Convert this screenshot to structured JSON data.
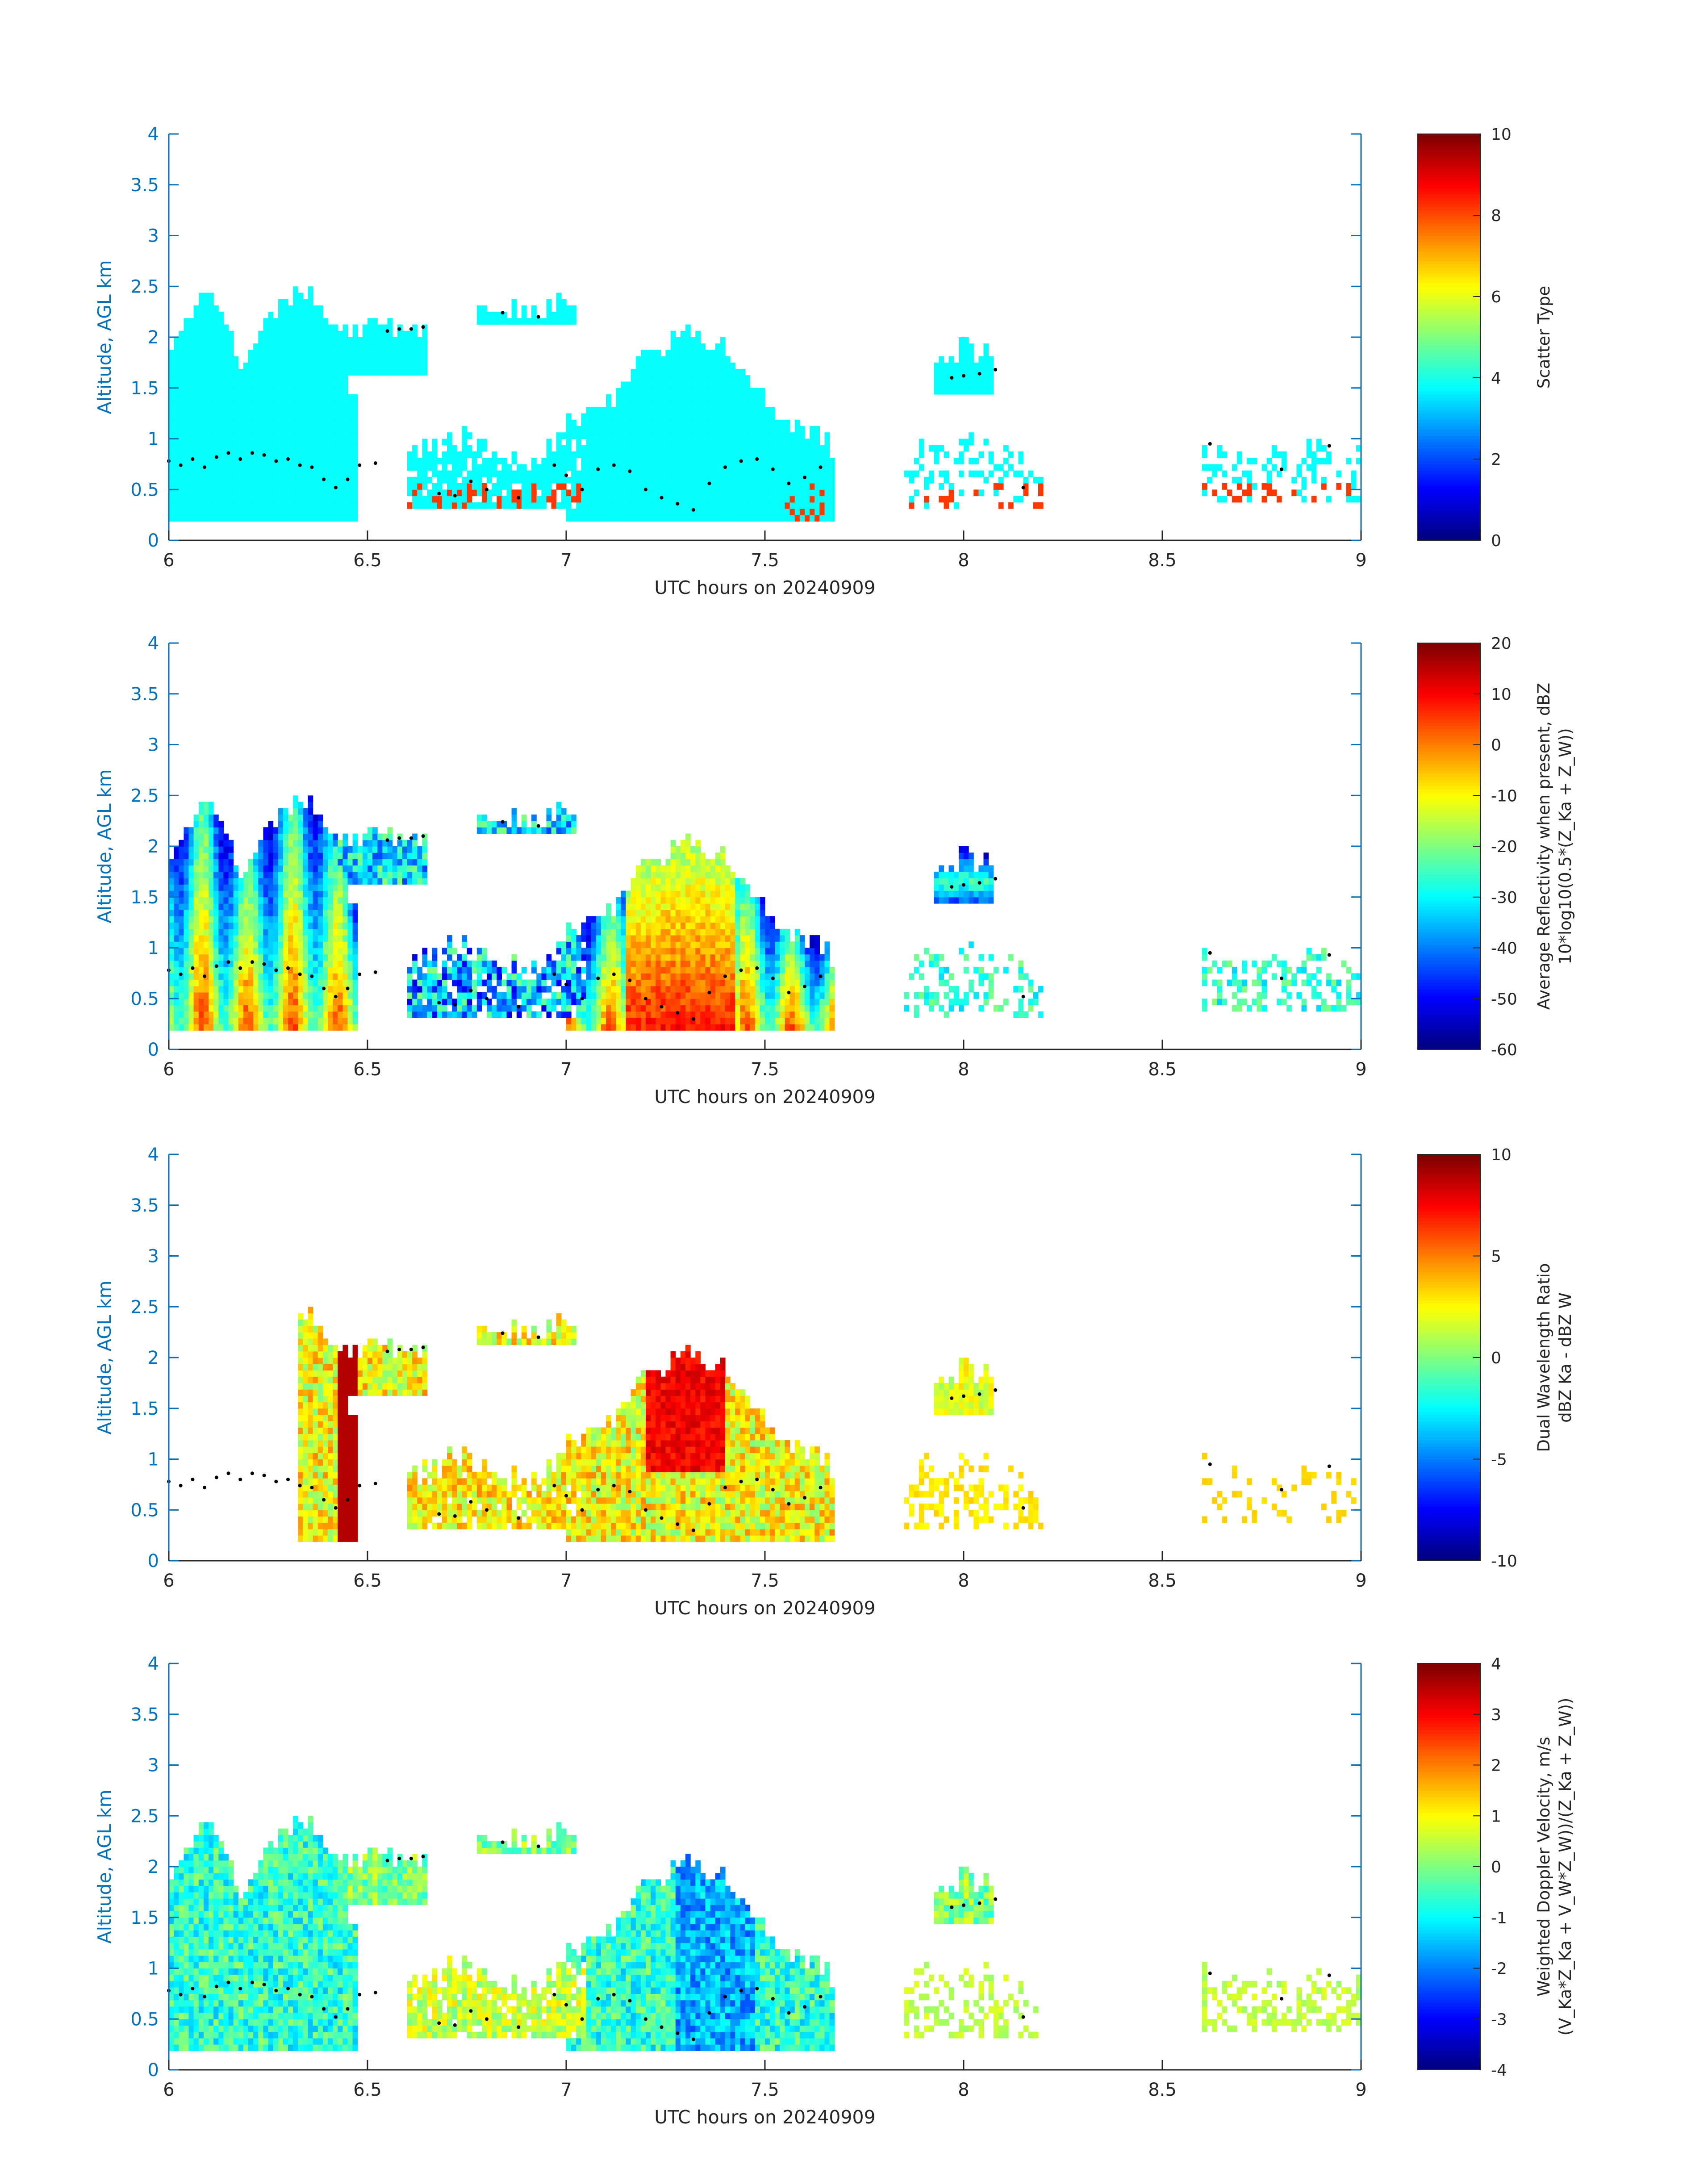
{
  "chart_data": [
    {
      "type": "heatmap",
      "panel": "scatter-type",
      "xlabel": "UTC hours on 20240909",
      "ylabel": "Altitude, AGL km",
      "xlim": [
        6,
        9
      ],
      "ylim": [
        0,
        4
      ],
      "xticks": [
        "6",
        "6.5",
        "7",
        "7.5",
        "8",
        "8.5",
        "9"
      ],
      "yticks": [
        "0",
        "0.5",
        "1",
        "1.5",
        "2",
        "2.5",
        "3",
        "3.5",
        "4"
      ],
      "colorbar": {
        "title_lines": [
          "Scatter Type"
        ],
        "clim": [
          0,
          10
        ],
        "ticks": [
          "0",
          "2",
          "4",
          "6",
          "8",
          "10"
        ]
      },
      "colormap": "jet",
      "annotations": "black dots mark cloud base / melting layer estimates"
    },
    {
      "type": "heatmap",
      "panel": "reflectivity",
      "xlabel": "UTC hours on 20240909",
      "ylabel": "Altitude, AGL km",
      "xlim": [
        6,
        9
      ],
      "ylim": [
        0,
        4
      ],
      "xticks": [
        "6",
        "6.5",
        "7",
        "7.5",
        "8",
        "8.5",
        "9"
      ],
      "yticks": [
        "0",
        "0.5",
        "1",
        "1.5",
        "2",
        "2.5",
        "3",
        "3.5",
        "4"
      ],
      "colorbar": {
        "title_lines": [
          "Average Reflectivity when present, dBZ",
          "10*log10(0.5*(Z_Ka + Z_W))"
        ],
        "clim": [
          -60,
          20
        ],
        "ticks": [
          "-60",
          "-50",
          "-40",
          "-30",
          "-20",
          "-10",
          "0",
          "10",
          "20"
        ]
      },
      "colormap": "jet"
    },
    {
      "type": "heatmap",
      "panel": "dwr",
      "xlabel": "UTC hours on 20240909",
      "ylabel": "Altitude, AGL km",
      "xlim": [
        6,
        9
      ],
      "ylim": [
        0,
        4
      ],
      "xticks": [
        "6",
        "6.5",
        "7",
        "7.5",
        "8",
        "8.5",
        "9"
      ],
      "yticks": [
        "0",
        "0.5",
        "1",
        "1.5",
        "2",
        "2.5",
        "3",
        "3.5",
        "4"
      ],
      "colorbar": {
        "title_lines": [
          "Dual Wavelength Ratio",
          "dBZ Ka - dBZ W"
        ],
        "clim": [
          -10,
          10
        ],
        "ticks": [
          "-10",
          "-5",
          "0",
          "5",
          "10"
        ]
      },
      "colormap": "jet"
    },
    {
      "type": "heatmap",
      "panel": "doppler",
      "xlabel": "UTC hours on 20240909",
      "ylabel": "Altitude, AGL km",
      "xlim": [
        6,
        9
      ],
      "ylim": [
        0,
        4
      ],
      "xticks": [
        "6",
        "6.5",
        "7",
        "7.5",
        "8",
        "8.5",
        "9"
      ],
      "yticks": [
        "0",
        "0.5",
        "1",
        "1.5",
        "2",
        "2.5",
        "3",
        "3.5",
        "4"
      ],
      "colorbar": {
        "title_lines": [
          "Weighted Doppler Velocity, m/s",
          "(V_Ka*Z_Ka + V_W*Z_W))/(Z_Ka + Z_W))"
        ],
        "clim": [
          -4,
          4
        ],
        "ticks": [
          "-4",
          "-3",
          "-2",
          "-1",
          "0",
          "1",
          "2",
          "3",
          "4"
        ]
      },
      "colormap": "jet"
    }
  ],
  "cloud_regions": [
    {
      "name": "early-cloud",
      "x": [
        6.0,
        6.48
      ],
      "base": 0.2,
      "top": [
        2.0,
        2.4,
        1.7,
        2.4,
        2.4,
        1.3
      ],
      "mode": "convective"
    },
    {
      "name": "anvil",
      "x": [
        6.35,
        6.65
      ],
      "base": 1.6,
      "top": [
        2.15,
        2.1,
        2.1
      ],
      "mode": "thin"
    },
    {
      "name": "low-cloud-a",
      "x": [
        6.6,
        7.05
      ],
      "base": 0.3,
      "top": [
        0.9,
        1.0,
        0.8,
        1.1
      ],
      "mode": "shallow"
    },
    {
      "name": "small-upper",
      "x": [
        6.78,
        7.02
      ],
      "base": 2.1,
      "top": [
        2.3,
        2.3
      ],
      "mode": "thin"
    },
    {
      "name": "main-cell",
      "x": [
        7.0,
        7.68
      ],
      "base": 0.2,
      "top": [
        1.2,
        1.3,
        1.8,
        2.0,
        1.9,
        1.5,
        1.1,
        0.9
      ],
      "mode": "convective"
    },
    {
      "name": "blob-8",
      "x": [
        7.92,
        8.08
      ],
      "base": 1.45,
      "top": [
        1.8,
        1.9,
        1.8
      ],
      "mode": "blob"
    },
    {
      "name": "scatter-8",
      "x": [
        7.85,
        8.2
      ],
      "base": 0.3,
      "top": [
        0.9,
        1.0,
        0.7
      ],
      "mode": "sparse"
    },
    {
      "name": "scatter-late",
      "x": [
        8.6,
        9.0
      ],
      "base": 0.4,
      "top": [
        1.0,
        0.9,
        0.9
      ],
      "mode": "sparse"
    }
  ],
  "base_dots": [
    [
      6.0,
      0.78
    ],
    [
      6.03,
      0.74
    ],
    [
      6.06,
      0.8
    ],
    [
      6.09,
      0.72
    ],
    [
      6.12,
      0.82
    ],
    [
      6.15,
      0.86
    ],
    [
      6.18,
      0.8
    ],
    [
      6.21,
      0.86
    ],
    [
      6.24,
      0.84
    ],
    [
      6.27,
      0.78
    ],
    [
      6.3,
      0.8
    ],
    [
      6.33,
      0.74
    ],
    [
      6.36,
      0.72
    ],
    [
      6.39,
      0.6
    ],
    [
      6.42,
      0.52
    ],
    [
      6.45,
      0.6
    ],
    [
      6.48,
      0.74
    ],
    [
      6.52,
      0.76
    ],
    [
      6.55,
      2.06
    ],
    [
      6.58,
      2.08
    ],
    [
      6.61,
      2.08
    ],
    [
      6.64,
      2.1
    ],
    [
      6.68,
      0.46
    ],
    [
      6.72,
      0.44
    ],
    [
      6.76,
      0.58
    ],
    [
      6.8,
      0.5
    ],
    [
      6.84,
      2.24
    ],
    [
      6.88,
      0.42
    ],
    [
      6.93,
      2.2
    ],
    [
      6.97,
      0.74
    ],
    [
      7.0,
      0.64
    ],
    [
      7.04,
      0.5
    ],
    [
      7.08,
      0.7
    ],
    [
      7.12,
      0.74
    ],
    [
      7.16,
      0.68
    ],
    [
      7.2,
      0.5
    ],
    [
      7.24,
      0.42
    ],
    [
      7.28,
      0.36
    ],
    [
      7.32,
      0.3
    ],
    [
      7.36,
      0.56
    ],
    [
      7.4,
      0.72
    ],
    [
      7.44,
      0.78
    ],
    [
      7.48,
      0.8
    ],
    [
      7.52,
      0.7
    ],
    [
      7.56,
      0.56
    ],
    [
      7.6,
      0.62
    ],
    [
      7.64,
      0.72
    ],
    [
      7.97,
      1.6
    ],
    [
      8.0,
      1.62
    ],
    [
      8.04,
      1.64
    ],
    [
      8.08,
      1.68
    ],
    [
      8.15,
      0.52
    ],
    [
      8.62,
      0.95
    ],
    [
      8.8,
      0.7
    ],
    [
      8.92,
      0.93
    ]
  ]
}
